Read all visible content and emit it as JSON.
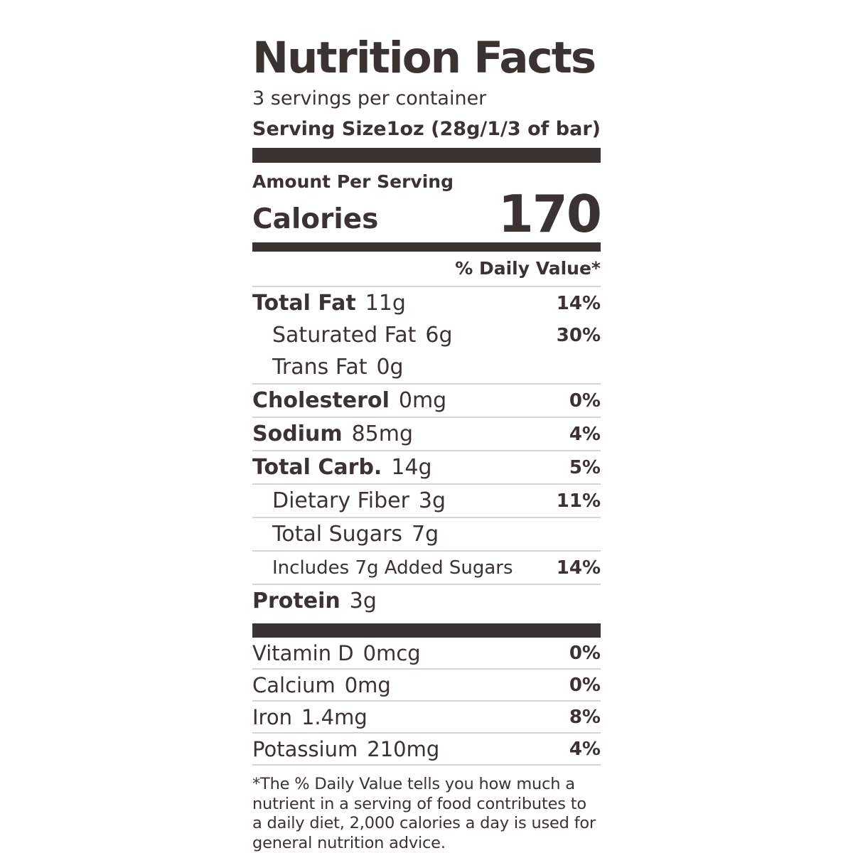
{
  "label": {
    "title": "Nutrition Facts",
    "servings_per_container": "3 servings per container",
    "serving_size_label": "Serving Size",
    "serving_size_value": "1oz (28g/1/3 of bar)",
    "amount_per_serving": "Amount Per Serving",
    "calories_label": "Calories",
    "calories_value": "170",
    "daily_value_header": "% Daily Value*",
    "footnote": "*The % Daily Value tells you how much a nutrient in a serving of food contributes to a daily diet, 2,000 calories a day is used for general nutrition advice."
  },
  "nutrients": [
    {
      "name": "Total Fat",
      "amount": "11g",
      "daily_value": "14%"
    },
    {
      "name": "Saturated Fat",
      "amount": "6g",
      "daily_value": "30%"
    },
    {
      "name": "Trans Fat",
      "amount": "0g",
      "daily_value": ""
    },
    {
      "name": "Cholesterol",
      "amount": "0mg",
      "daily_value": "0%"
    },
    {
      "name": "Sodium",
      "amount": "85mg",
      "daily_value": "4%"
    },
    {
      "name": "Total Carb.",
      "amount": "14g",
      "daily_value": "5%"
    },
    {
      "name": "Dietary Fiber",
      "amount": "3g",
      "daily_value": "11%"
    },
    {
      "name": "Total Sugars",
      "amount": "7g",
      "daily_value": ""
    },
    {
      "name": "Includes 7g Added Sugars",
      "amount": "",
      "daily_value": "14%"
    },
    {
      "name": "Protein",
      "amount": "3g",
      "daily_value": ""
    }
  ],
  "micronutrients": [
    {
      "name": "Vitamin D",
      "amount": "0mcg",
      "daily_value": "0%"
    },
    {
      "name": "Calcium",
      "amount": "0mg",
      "daily_value": "0%"
    },
    {
      "name": "Iron",
      "amount": "1.4mg",
      "daily_value": "8%"
    },
    {
      "name": "Potassium",
      "amount": "210mg",
      "daily_value": "4%"
    }
  ],
  "colors": {
    "text": "#3a3331",
    "divider": "#d8d5d2"
  }
}
